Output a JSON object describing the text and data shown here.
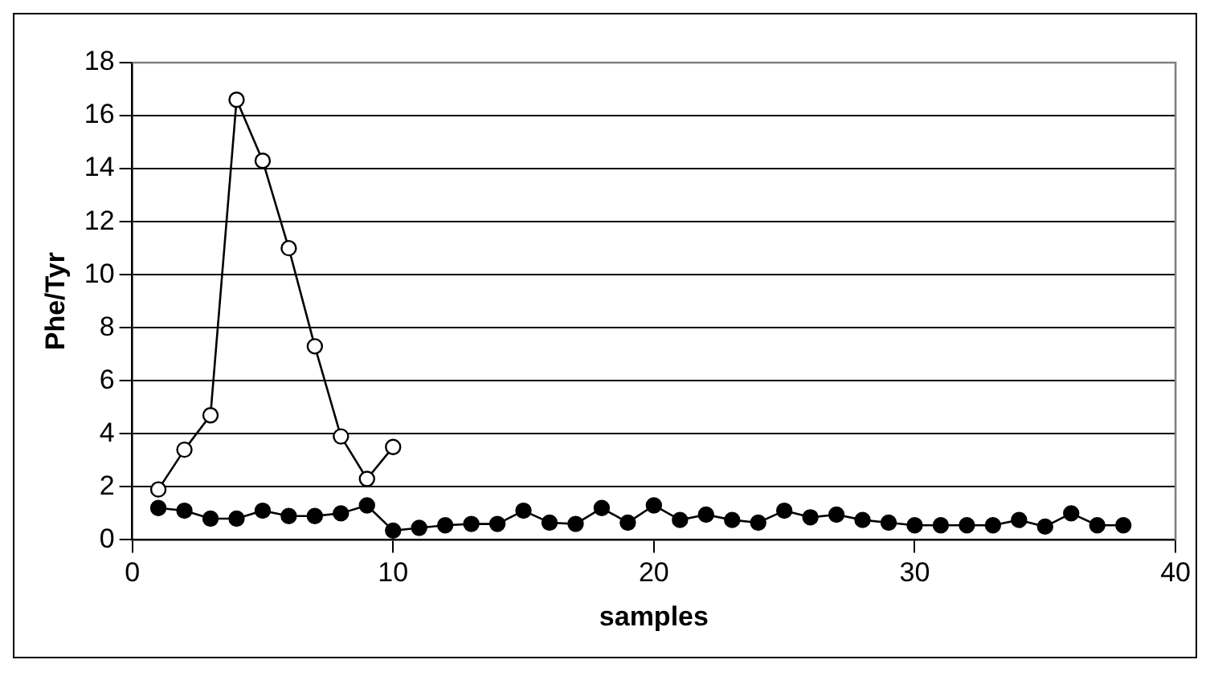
{
  "chart_data": {
    "type": "line",
    "xlabel": "samples",
    "ylabel": "Phe/Tyr",
    "xlim": [
      0,
      40
    ],
    "xticks": [
      0,
      10,
      20,
      30,
      40
    ],
    "ylim": [
      0,
      18
    ],
    "yticks": [
      0,
      2,
      4,
      6,
      8,
      10,
      12,
      14,
      16,
      18
    ],
    "grid": "y",
    "legend": false,
    "marker": "circle",
    "line_style": "solid",
    "series": [
      {
        "color": "#ffffff",
        "x": [
          1,
          2,
          3,
          4,
          5,
          6,
          7,
          8,
          9,
          10
        ],
        "values": [
          1.9,
          3.4,
          4.7,
          16.6,
          14.3,
          11.0,
          7.3,
          3.9,
          2.3,
          3.5
        ]
      },
      {
        "color": "#000000",
        "x": [
          1,
          2,
          3,
          4,
          5,
          6,
          7,
          8,
          9,
          10,
          11,
          12,
          13,
          14,
          15,
          16,
          17,
          18,
          19,
          20,
          21,
          22,
          23,
          24,
          25,
          26,
          27,
          28,
          29,
          30,
          31,
          32,
          33,
          34,
          35,
          36,
          37,
          38
        ],
        "values": [
          1.2,
          1.1,
          0.8,
          0.8,
          1.1,
          0.9,
          0.9,
          1.0,
          1.3,
          0.35,
          0.45,
          0.55,
          0.6,
          0.6,
          1.1,
          0.65,
          0.6,
          1.2,
          0.65,
          1.3,
          0.75,
          0.95,
          0.75,
          0.65,
          1.1,
          0.85,
          0.95,
          0.75,
          0.65,
          0.55,
          0.55,
          0.55,
          0.55,
          0.75,
          0.5,
          1.0,
          0.55,
          0.55
        ]
      }
    ]
  }
}
